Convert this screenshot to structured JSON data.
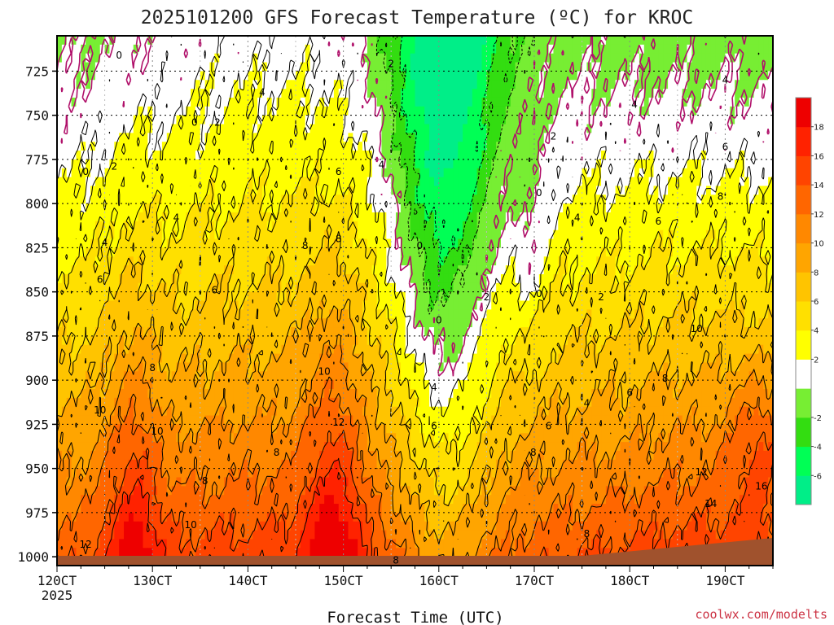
{
  "chart_data": {
    "type": "heatmap",
    "title": "2025101200 GFS Forecast Temperature (ºC) for KROC",
    "xlabel": "Forecast Time (UTC)",
    "ylabel": "",
    "credit": "coolwx.com/modelts",
    "x_ticks": [
      "120CT",
      "130CT",
      "140CT",
      "150CT",
      "160CT",
      "170CT",
      "180CT",
      "190CT"
    ],
    "x_year_label": "2025",
    "x_range_days": [
      12,
      19.5
    ],
    "y_ticks": [
      725,
      750,
      775,
      800,
      825,
      850,
      875,
      900,
      925,
      950,
      975,
      1000
    ],
    "y_range_hpa": [
      705,
      1005
    ],
    "colorbar_ticks": [
      18,
      16,
      14,
      12,
      10,
      8,
      6,
      4,
      2,
      -2,
      -4,
      -6
    ],
    "color_levels": [
      {
        "min": -8,
        "max": -6,
        "color": "#00ee88"
      },
      {
        "min": -6,
        "max": -4,
        "color": "#00ff55"
      },
      {
        "min": -4,
        "max": -2,
        "color": "#33dd11"
      },
      {
        "min": -2,
        "max": 0,
        "color": "#77ee33"
      },
      {
        "min": 0,
        "max": 2,
        "color": "#ffffff"
      },
      {
        "min": 2,
        "max": 4,
        "color": "#ffff00"
      },
      {
        "min": 4,
        "max": 6,
        "color": "#ffe000"
      },
      {
        "min": 6,
        "max": 8,
        "color": "#ffc400"
      },
      {
        "min": 8,
        "max": 10,
        "color": "#ffa500"
      },
      {
        "min": 10,
        "max": 12,
        "color": "#ff8800"
      },
      {
        "min": 12,
        "max": 14,
        "color": "#ff6600"
      },
      {
        "min": 14,
        "max": 16,
        "color": "#ff4400"
      },
      {
        "min": 16,
        "max": 18,
        "color": "#ff2200"
      },
      {
        "min": 18,
        "max": 20,
        "color": "#ee0000"
      }
    ],
    "ground_color": "#a0522d",
    "contour_labels": [
      {
        "text": "0",
        "day": 12.65,
        "p": 716
      },
      {
        "text": "0",
        "day": 12.3,
        "p": 782
      },
      {
        "text": "2",
        "day": 12.6,
        "p": 779
      },
      {
        "text": "0",
        "day": 13.44,
        "p": 754
      },
      {
        "text": "2",
        "day": 13.68,
        "p": 754
      },
      {
        "text": "4",
        "day": 14.15,
        "p": 737
      },
      {
        "text": "2",
        "day": 15.5,
        "p": 721
      },
      {
        "text": "6",
        "day": 14.95,
        "p": 782
      },
      {
        "text": "4",
        "day": 15.4,
        "p": 778
      },
      {
        "text": "4",
        "day": 13.25,
        "p": 808
      },
      {
        "text": "4",
        "day": 12.5,
        "p": 822
      },
      {
        "text": "6",
        "day": 12.45,
        "p": 843
      },
      {
        "text": "6",
        "day": 13.65,
        "p": 849
      },
      {
        "text": "8",
        "day": 14.6,
        "p": 824
      },
      {
        "text": "8",
        "day": 14.95,
        "p": 820
      },
      {
        "text": "8",
        "day": 13.0,
        "p": 893
      },
      {
        "text": "10",
        "day": 12.45,
        "p": 917
      },
      {
        "text": "10",
        "day": 13.05,
        "p": 929
      },
      {
        "text": "8",
        "day": 13.55,
        "p": 957
      },
      {
        "text": "8",
        "day": 14.3,
        "p": 941
      },
      {
        "text": "10",
        "day": 13.4,
        "p": 982
      },
      {
        "text": "10",
        "day": 14.8,
        "p": 895
      },
      {
        "text": "12",
        "day": 14.95,
        "p": 924
      },
      {
        "text": "12",
        "day": 12.3,
        "p": 993
      },
      {
        "text": "8",
        "day": 15.55,
        "p": 1002
      },
      {
        "text": "0",
        "day": 15.8,
        "p": 824
      },
      {
        "text": "0",
        "day": 16.0,
        "p": 866
      },
      {
        "text": "2",
        "day": 16.5,
        "p": 853
      },
      {
        "text": "0",
        "day": 17.05,
        "p": 851
      },
      {
        "text": "0",
        "day": 17.05,
        "p": 794
      },
      {
        "text": "2",
        "day": 17.2,
        "p": 762
      },
      {
        "text": "4",
        "day": 15.95,
        "p": 904
      },
      {
        "text": "6",
        "day": 15.95,
        "p": 926
      },
      {
        "text": "8",
        "day": 16.99,
        "p": 941
      },
      {
        "text": "6",
        "day": 17.15,
        "p": 926
      },
      {
        "text": "4",
        "day": 17.45,
        "p": 808
      },
      {
        "text": "2",
        "day": 17.7,
        "p": 853
      },
      {
        "text": "4",
        "day": 17.55,
        "p": 913
      },
      {
        "text": "6",
        "day": 18.0,
        "p": 907
      },
      {
        "text": "8",
        "day": 18.37,
        "p": 899
      },
      {
        "text": "8",
        "day": 17.55,
        "p": 987
      },
      {
        "text": "4",
        "day": 18.05,
        "p": 744
      },
      {
        "text": "6",
        "day": 18.3,
        "p": 810
      },
      {
        "text": "4",
        "day": 19.0,
        "p": 730
      },
      {
        "text": "6",
        "day": 19.0,
        "p": 768
      },
      {
        "text": "8",
        "day": 18.95,
        "p": 796
      },
      {
        "text": "10",
        "day": 18.7,
        "p": 871
      },
      {
        "text": "12",
        "day": 18.75,
        "p": 952
      },
      {
        "text": "14",
        "day": 18.85,
        "p": 970
      },
      {
        "text": "16",
        "day": 19.38,
        "p": 960
      }
    ]
  }
}
